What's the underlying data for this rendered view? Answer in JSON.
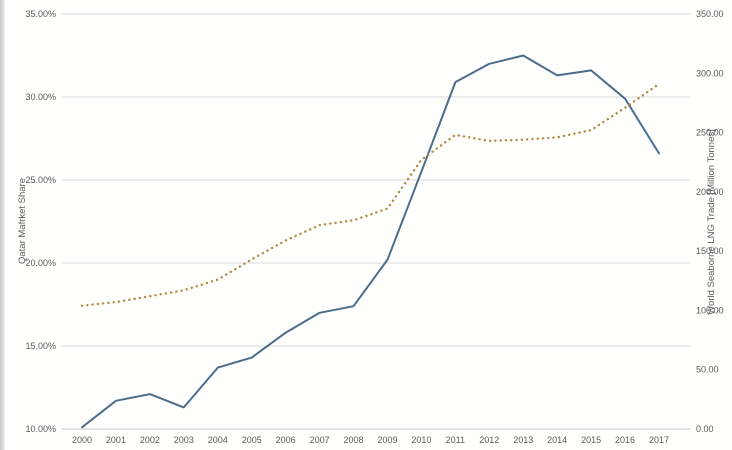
{
  "chart_data": {
    "type": "line",
    "title": "",
    "x_categories": [
      "2000",
      "2001",
      "2002",
      "2003",
      "2004",
      "2005",
      "2006",
      "2007",
      "2008",
      "2009",
      "2010",
      "2011",
      "2012",
      "2013",
      "2014",
      "2015",
      "2016",
      "2017"
    ],
    "series": [
      {
        "name": "Qatar Market Share",
        "axis": "left",
        "style": "solid",
        "color": "#4a6d8c",
        "values": [
          10.1,
          11.7,
          12.1,
          11.3,
          13.7,
          14.3,
          15.8,
          17.0,
          17.4,
          20.2,
          25.5,
          30.9,
          32.0,
          32.5,
          31.3,
          31.6,
          29.9,
          26.6
        ]
      },
      {
        "name": "World Seaborne LNG Trade",
        "axis": "right",
        "style": "dotted",
        "color": "#ae8d41",
        "values": [
          104,
          107,
          112,
          117,
          126,
          143,
          159,
          172,
          176,
          186,
          227,
          248,
          243,
          244,
          246,
          252,
          271,
          291
        ]
      }
    ],
    "left_axis": {
      "title": "Qatar Mafrket Share",
      "min": 10,
      "max": 35,
      "tick_labels": [
        "10.00%",
        "15.00%",
        "20.00%",
        "25.00%",
        "30.00%",
        "35.00%"
      ],
      "tick_values": [
        10,
        15,
        20,
        25,
        30,
        35
      ]
    },
    "right_axis": {
      "title": "World Seaborne LNG Trade [Million Tonnes]",
      "min": 0,
      "max": 350,
      "tick_labels": [
        "0.00",
        "50.00",
        "100.00",
        "150.00",
        "200.00",
        "250.00",
        "300.00",
        "350.00"
      ],
      "tick_values": [
        0,
        50,
        100,
        150,
        200,
        250,
        300,
        350
      ]
    },
    "grid": "horizontal",
    "legend": "none",
    "colors": {
      "gridline": "#d9d9d9",
      "axis_line": "#c6c6c6",
      "tick_text": "#595959"
    }
  }
}
